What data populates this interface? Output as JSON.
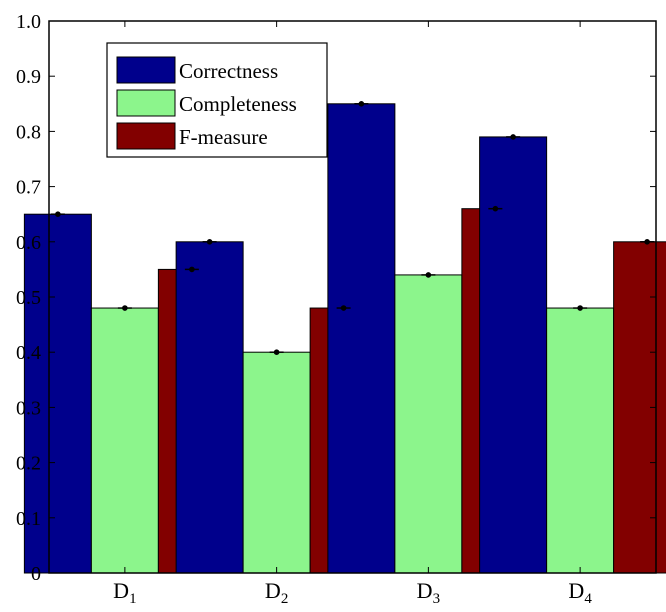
{
  "chart_data": {
    "type": "bar",
    "categories": [
      {
        "base": "D",
        "sub": "1"
      },
      {
        "base": "D",
        "sub": "2"
      },
      {
        "base": "D",
        "sub": "3"
      },
      {
        "base": "D",
        "sub": "4"
      }
    ],
    "series": [
      {
        "name": "Correctness",
        "color": "#00008c",
        "values": [
          0.65,
          0.6,
          0.85,
          0.79
        ]
      },
      {
        "name": "Completeness",
        "color": "#8cf58c",
        "values": [
          0.48,
          0.4,
          0.54,
          0.48
        ]
      },
      {
        "name": "F-measure",
        "color": "#820000",
        "values": [
          0.55,
          0.48,
          0.66,
          0.6
        ]
      }
    ],
    "ylim": [
      0,
      1.0
    ],
    "yticks": [
      "0",
      "0.1",
      "0.2",
      "0.3",
      "0.4",
      "0.5",
      "0.6",
      "0.7",
      "0.8",
      "0.9",
      "1.0"
    ],
    "error_bars": true,
    "grid": false,
    "legend_position": "top-left"
  }
}
